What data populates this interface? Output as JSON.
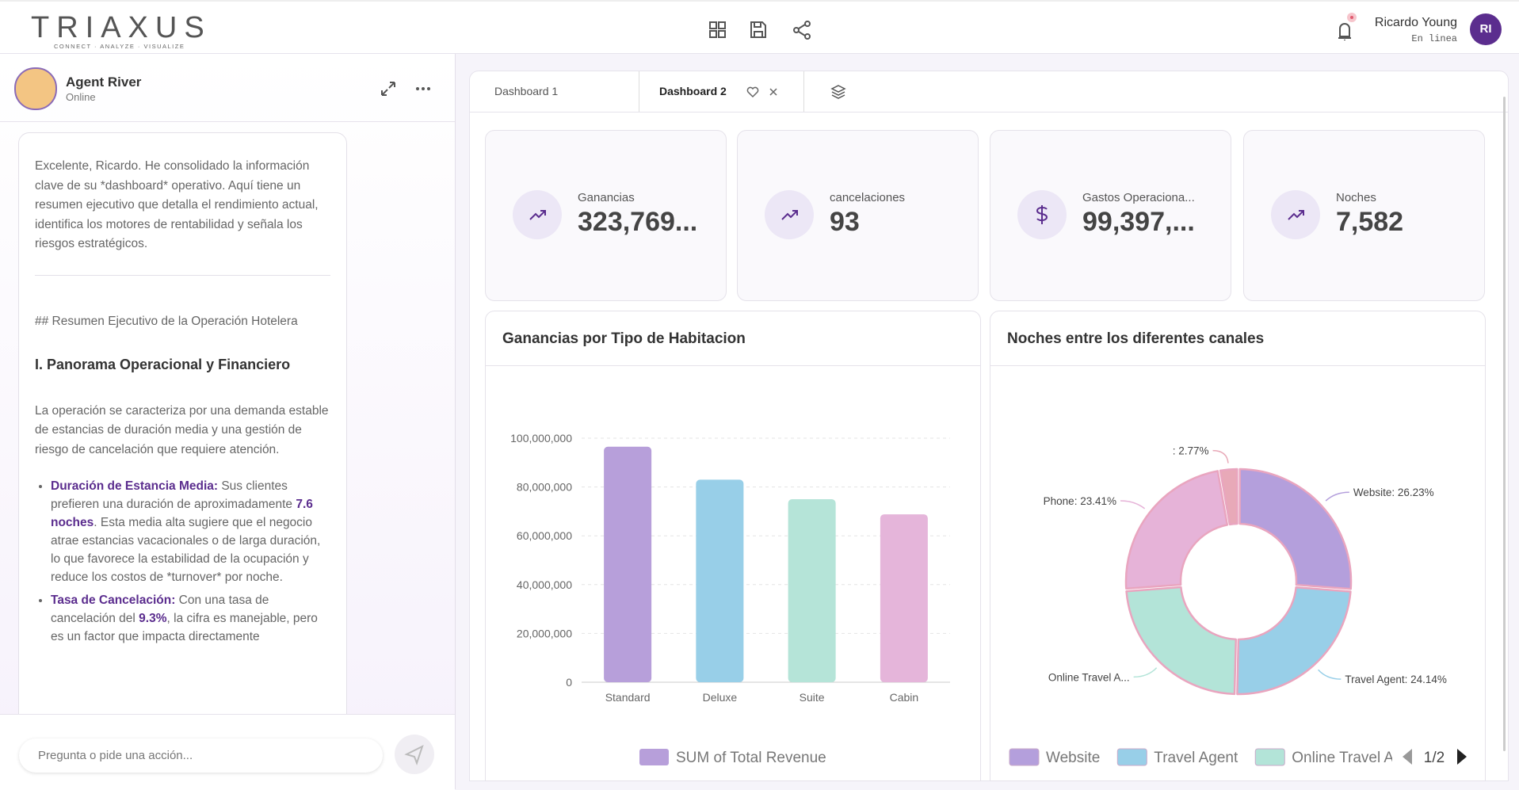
{
  "header": {
    "logo": "TRIAXUS",
    "tagline": "CONNECT · ANALYZE · VISUALIZE",
    "user_name": "Ricardo Young",
    "user_status": "En linea",
    "user_initials": "RI"
  },
  "agent": {
    "name": "Agent River",
    "status": "Online"
  },
  "chat": {
    "intro": "Excelente, Ricardo. He consolidado la información clave de su *dashboard* operativo. Aquí tiene un resumen ejecutivo que detalla el rendimiento actual, identifica los motores de rentabilidad y señala los riesgos estratégicos.",
    "heading_raw": "## Resumen Ejecutivo de la Operación Hotelera",
    "section_title": "I. Panorama Operacional y Financiero",
    "paragraph": "La operación se caracteriza por una demanda estable de estancias de duración media y una gestión de riesgo de cancelación que requiere atención.",
    "bullets": [
      [
        "Duración de Estancia Media:",
        " Sus clientes prefieren una duración de aproximadamente ",
        "7.6 noches",
        ". Esta media alta sugiere que el negocio atrae estancias vacacionales o de larga duración, lo que favorece la estabilidad de la ocupación y reduce los costos de *turnover* por noche."
      ],
      [
        "Tasa de Cancelación:",
        " Con una tasa de cancelación del ",
        "9.3%",
        ", la cifra es manejable, pero es un factor que impacta directamente"
      ]
    ]
  },
  "input_placeholder": "Pregunta o pide una acción...",
  "tabs": [
    "Dashboard 1",
    "Dashboard 2"
  ],
  "kpis": [
    {
      "label": "Ganancias",
      "value": "323,769..."
    },
    {
      "label": "cancelaciones",
      "value": "93"
    },
    {
      "label": "Gastos Operaciona...",
      "value": "99,397,..."
    },
    {
      "label": "Noches",
      "value": "7,582"
    }
  ],
  "charts": [
    {
      "type": "bar",
      "title": "Ganancias por Tipo de Habitacion",
      "categories": [
        "Standard",
        "Deluxe",
        "Suite",
        "Cabin"
      ],
      "series": [
        {
          "name": "SUM of Total Revenue",
          "color": "#b79fda",
          "values": [
            96500000,
            83000000,
            75000000,
            68800000
          ]
        }
      ],
      "bar_colors": [
        "#b79fda",
        "#98cfe8",
        "#b5e4d8",
        "#e5b5da"
      ],
      "ylim": [
        0,
        100000000
      ],
      "yticks": [
        0,
        {
          "value": 20000000,
          "label": "20,000,000"
        },
        {
          "value": 40000000,
          "label": "40,000,000"
        },
        {
          "value": 60000000,
          "label": "60,000,000"
        },
        {
          "value": 80000000,
          "label": "80,000,000"
        },
        {
          "value": 100000000,
          "label": "100,000,000"
        }
      ],
      "grid": true
    },
    {
      "type": "pie",
      "title": "Noches entre los diferentes canales",
      "categories": [
        "Website",
        "Travel Agent",
        "Online Travel A...",
        "Phone",
        null
      ],
      "values": [
        26.23,
        24.14,
        23.45,
        23.41,
        2.77
      ],
      "value_labels": [
        "Website: 26.23%",
        "Travel Agent: 24.14%",
        "Online Travel A...",
        "Phone: 23.41%",
        ": 2.77%"
      ],
      "colors": [
        "#b49fdc",
        "#98cfe8",
        "#b3e4d8",
        "#e6b3d8",
        "#e8a9b8"
      ],
      "pager": "1/2"
    }
  ]
}
